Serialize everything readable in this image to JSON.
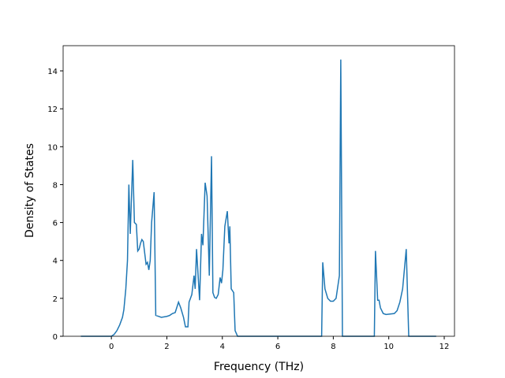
{
  "chart_data": {
    "type": "line",
    "xlabel": "Frequency (THz)",
    "ylabel": "Density of States",
    "xlim": [
      -1.74,
      12.37
    ],
    "ylim": [
      0,
      15.33
    ],
    "xticks": [
      0,
      2,
      4,
      6,
      8,
      10,
      12
    ],
    "yticks": [
      0,
      2,
      4,
      6,
      8,
      10,
      12,
      14
    ],
    "series": [
      {
        "color": "#1f77b4",
        "x": [
          -1.1,
          0,
          0.1,
          0.2,
          0.3,
          0.4,
          0.45,
          0.52,
          0.58,
          0.63,
          0.68,
          0.77,
          0.83,
          0.9,
          0.95,
          1.0,
          1.05,
          1.1,
          1.15,
          1.25,
          1.3,
          1.35,
          1.4,
          1.45,
          1.54,
          1.6,
          1.7,
          1.8,
          2.0,
          2.1,
          2.2,
          2.3,
          2.42,
          2.5,
          2.6,
          2.67,
          2.76,
          2.8,
          2.9,
          2.98,
          3.02,
          3.07,
          3.18,
          3.25,
          3.3,
          3.38,
          3.45,
          3.53,
          3.61,
          3.66,
          3.72,
          3.78,
          3.85,
          3.92,
          3.97,
          4.02,
          4.09,
          4.18,
          4.24,
          4.27,
          4.32,
          4.41,
          4.46,
          4.55,
          7.58,
          7.62,
          7.7,
          7.8,
          7.9,
          8.0,
          8.1,
          8.15,
          8.22,
          8.27,
          8.33,
          9.48,
          9.52,
          9.6,
          9.65,
          9.7,
          9.8,
          9.9,
          10.2,
          10.3,
          10.4,
          10.5,
          10.63,
          10.72,
          11.71
        ],
        "values": [
          0,
          0,
          0.1,
          0.3,
          0.6,
          1.0,
          1.4,
          2.5,
          4.0,
          8.0,
          5.4,
          9.3,
          6.0,
          5.9,
          4.5,
          4.6,
          4.9,
          5.1,
          5.0,
          3.8,
          3.9,
          3.5,
          4.0,
          6.0,
          7.6,
          1.1,
          1.05,
          1.0,
          1.05,
          1.1,
          1.2,
          1.25,
          1.8,
          1.5,
          1.0,
          0.5,
          0.5,
          1.8,
          2.2,
          3.2,
          2.5,
          4.6,
          1.9,
          5.4,
          4.8,
          8.1,
          7.4,
          3.2,
          9.5,
          2.3,
          2.05,
          2.0,
          2.2,
          3.1,
          2.8,
          3.5,
          5.8,
          6.6,
          4.9,
          5.8,
          2.5,
          2.3,
          0.3,
          0,
          0,
          3.9,
          2.5,
          2.0,
          1.85,
          1.85,
          2.0,
          2.5,
          3.2,
          14.6,
          0,
          0,
          4.5,
          1.9,
          1.9,
          1.5,
          1.2,
          1.15,
          1.2,
          1.35,
          1.8,
          2.5,
          4.6,
          0,
          0
        ]
      }
    ]
  }
}
